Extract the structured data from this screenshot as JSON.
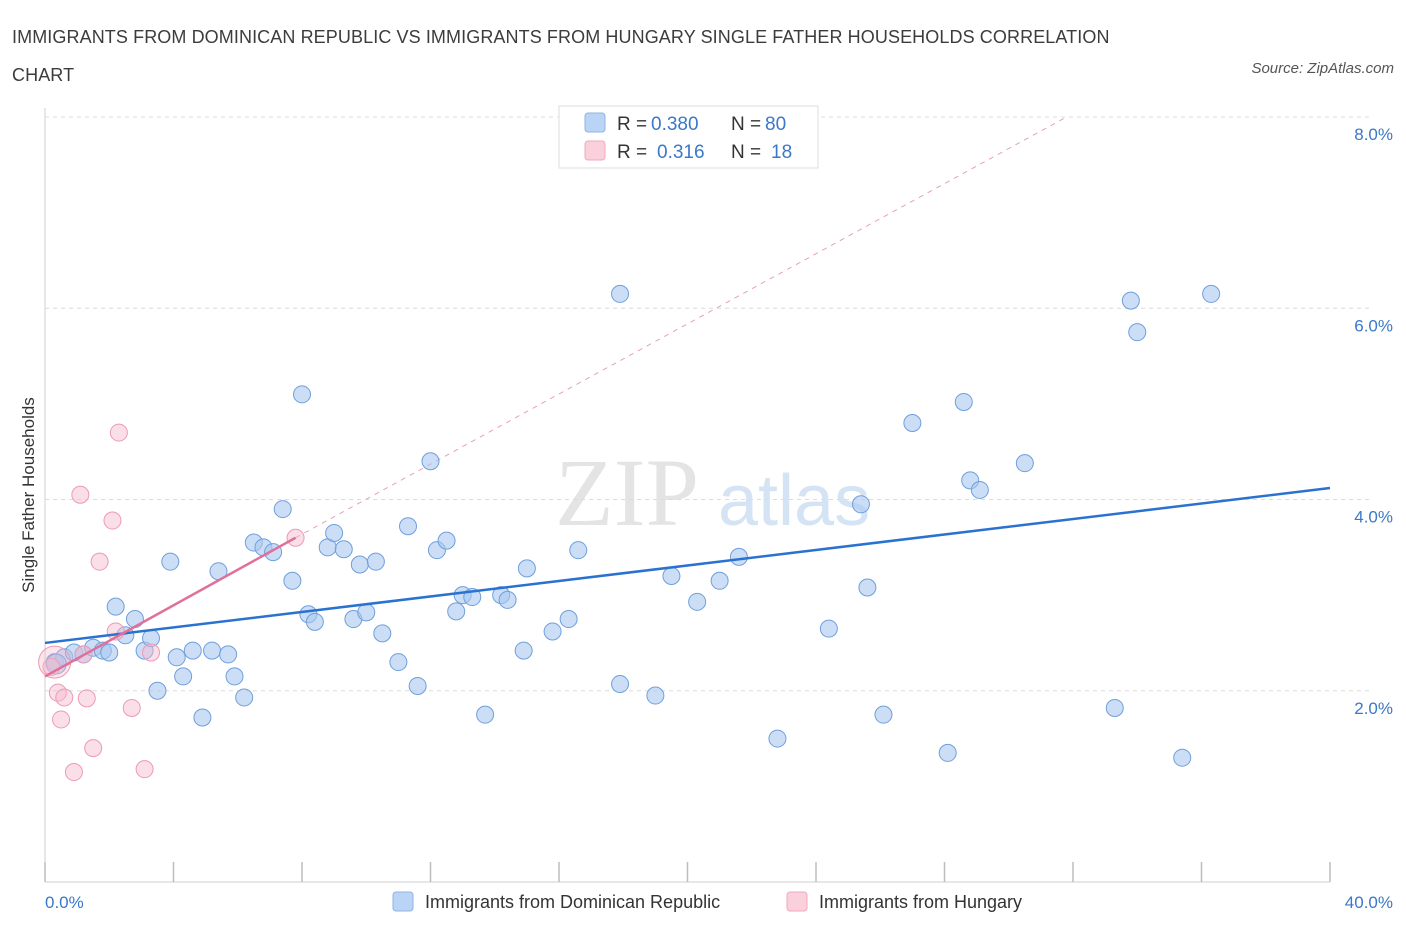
{
  "title": "IMMIGRANTS FROM DOMINICAN REPUBLIC VS IMMIGRANTS FROM HUNGARY SINGLE FATHER HOUSEHOLDS CORRELATION CHART",
  "source": "Source: ZipAtlas.com",
  "watermark": {
    "zip": "ZIP",
    "atlas": "atlas"
  },
  "colors": {
    "blue": "#a8c8f0",
    "blue_line": "#2a72d0",
    "blue_text": "#3a78c8",
    "pink": "#f7b8cb",
    "pink_line": "#e0709a"
  },
  "legend_top": [
    {
      "r_label": "R =",
      "r_value": "0.380",
      "n_label": "N =",
      "n_value": "80"
    },
    {
      "r_label": "R =",
      "r_value": "0.316",
      "n_label": "N =",
      "n_value": "18"
    }
  ],
  "legend_bottom": [
    "Immigrants from Dominican Republic",
    "Immigrants from Hungary"
  ],
  "chart_data": {
    "type": "scatter",
    "title": "IMMIGRANTS FROM DOMINICAN REPUBLIC VS IMMIGRANTS FROM HUNGARY SINGLE FATHER HOUSEHOLDS CORRELATION CHART",
    "xlabel": "",
    "ylabel": "Single Father Households",
    "xlim": [
      0,
      40
    ],
    "ylim": [
      0,
      8
    ],
    "x_tick_labels": [
      "0.0%",
      "40.0%"
    ],
    "y_ticks": [
      2,
      4,
      6,
      8
    ],
    "y_tick_labels": [
      "2.0%",
      "4.0%",
      "6.0%",
      "8.0%"
    ],
    "series": [
      {
        "name": "Immigrants from Dominican Republic",
        "color": "#a8c8f0",
        "trend": {
          "x0": 0,
          "y0": 2.5,
          "x1": 40,
          "y1": 4.12
        },
        "points": [
          [
            0.3,
            2.3
          ],
          [
            0.6,
            2.35
          ],
          [
            0.9,
            2.4
          ],
          [
            1.2,
            2.38
          ],
          [
            1.5,
            2.45
          ],
          [
            1.8,
            2.42
          ],
          [
            2.0,
            2.4
          ],
          [
            2.2,
            2.88
          ],
          [
            2.5,
            2.58
          ],
          [
            2.8,
            2.75
          ],
          [
            3.1,
            2.42
          ],
          [
            3.3,
            2.55
          ],
          [
            3.5,
            2.0
          ],
          [
            3.9,
            3.35
          ],
          [
            4.1,
            2.35
          ],
          [
            4.3,
            2.15
          ],
          [
            4.6,
            2.42
          ],
          [
            4.9,
            1.72
          ],
          [
            5.2,
            2.42
          ],
          [
            5.4,
            3.25
          ],
          [
            5.7,
            2.38
          ],
          [
            5.9,
            2.15
          ],
          [
            6.2,
            1.93
          ],
          [
            6.5,
            3.55
          ],
          [
            6.8,
            3.5
          ],
          [
            7.1,
            3.45
          ],
          [
            7.4,
            3.9
          ],
          [
            7.7,
            3.15
          ],
          [
            8.0,
            5.1
          ],
          [
            8.2,
            2.8
          ],
          [
            8.4,
            2.72
          ],
          [
            8.8,
            3.5
          ],
          [
            9.0,
            3.65
          ],
          [
            9.3,
            3.48
          ],
          [
            9.6,
            2.75
          ],
          [
            9.8,
            3.32
          ],
          [
            10.0,
            2.82
          ],
          [
            10.3,
            3.35
          ],
          [
            10.5,
            2.6
          ],
          [
            11.0,
            2.3
          ],
          [
            11.3,
            3.72
          ],
          [
            11.6,
            2.05
          ],
          [
            12.0,
            4.4
          ],
          [
            12.2,
            3.47
          ],
          [
            12.5,
            3.57
          ],
          [
            12.8,
            2.83
          ],
          [
            13.0,
            3.0
          ],
          [
            13.3,
            2.98
          ],
          [
            13.7,
            1.75
          ],
          [
            14.2,
            3.0
          ],
          [
            14.4,
            2.95
          ],
          [
            14.9,
            2.42
          ],
          [
            15.0,
            3.28
          ],
          [
            15.8,
            2.62
          ],
          [
            16.3,
            2.75
          ],
          [
            16.6,
            3.47
          ],
          [
            17.9,
            6.15
          ],
          [
            17.9,
            2.07
          ],
          [
            19.0,
            1.95
          ],
          [
            19.5,
            3.2
          ],
          [
            20.3,
            2.93
          ],
          [
            21.0,
            3.15
          ],
          [
            21.6,
            3.4
          ],
          [
            22.8,
            1.5
          ],
          [
            24.4,
            2.65
          ],
          [
            25.4,
            3.95
          ],
          [
            25.6,
            3.08
          ],
          [
            26.1,
            1.75
          ],
          [
            27.0,
            4.8
          ],
          [
            28.1,
            1.35
          ],
          [
            28.6,
            5.02
          ],
          [
            28.8,
            4.2
          ],
          [
            29.1,
            4.1
          ],
          [
            30.5,
            4.38
          ],
          [
            33.3,
            1.82
          ],
          [
            33.8,
            6.08
          ],
          [
            34.0,
            5.75
          ],
          [
            35.4,
            1.3
          ],
          [
            36.3,
            6.15
          ],
          [
            0.35,
            2.28
          ]
        ]
      },
      {
        "name": "Immigrants from Hungary",
        "color": "#f7b8cb",
        "trend": {
          "x0": 0,
          "y0": 2.15,
          "x1": 7.8,
          "y1": 3.6
        },
        "extension": {
          "x0": 7.8,
          "y0": 3.6,
          "x1": 31.8,
          "y1": 8.0
        },
        "points": [
          [
            0.2,
            2.25
          ],
          [
            0.4,
            1.98
          ],
          [
            0.5,
            1.7
          ],
          [
            0.6,
            1.93
          ],
          [
            0.9,
            1.15
          ],
          [
            1.1,
            4.05
          ],
          [
            1.2,
            2.38
          ],
          [
            1.3,
            1.92
          ],
          [
            1.5,
            1.4
          ],
          [
            1.7,
            3.35
          ],
          [
            2.1,
            3.78
          ],
          [
            2.2,
            2.62
          ],
          [
            2.3,
            4.7
          ],
          [
            2.7,
            1.82
          ],
          [
            3.1,
            1.18
          ],
          [
            3.3,
            2.4
          ],
          [
            7.8,
            3.6
          ],
          [
            0.3,
            2.3
          ]
        ]
      }
    ]
  }
}
